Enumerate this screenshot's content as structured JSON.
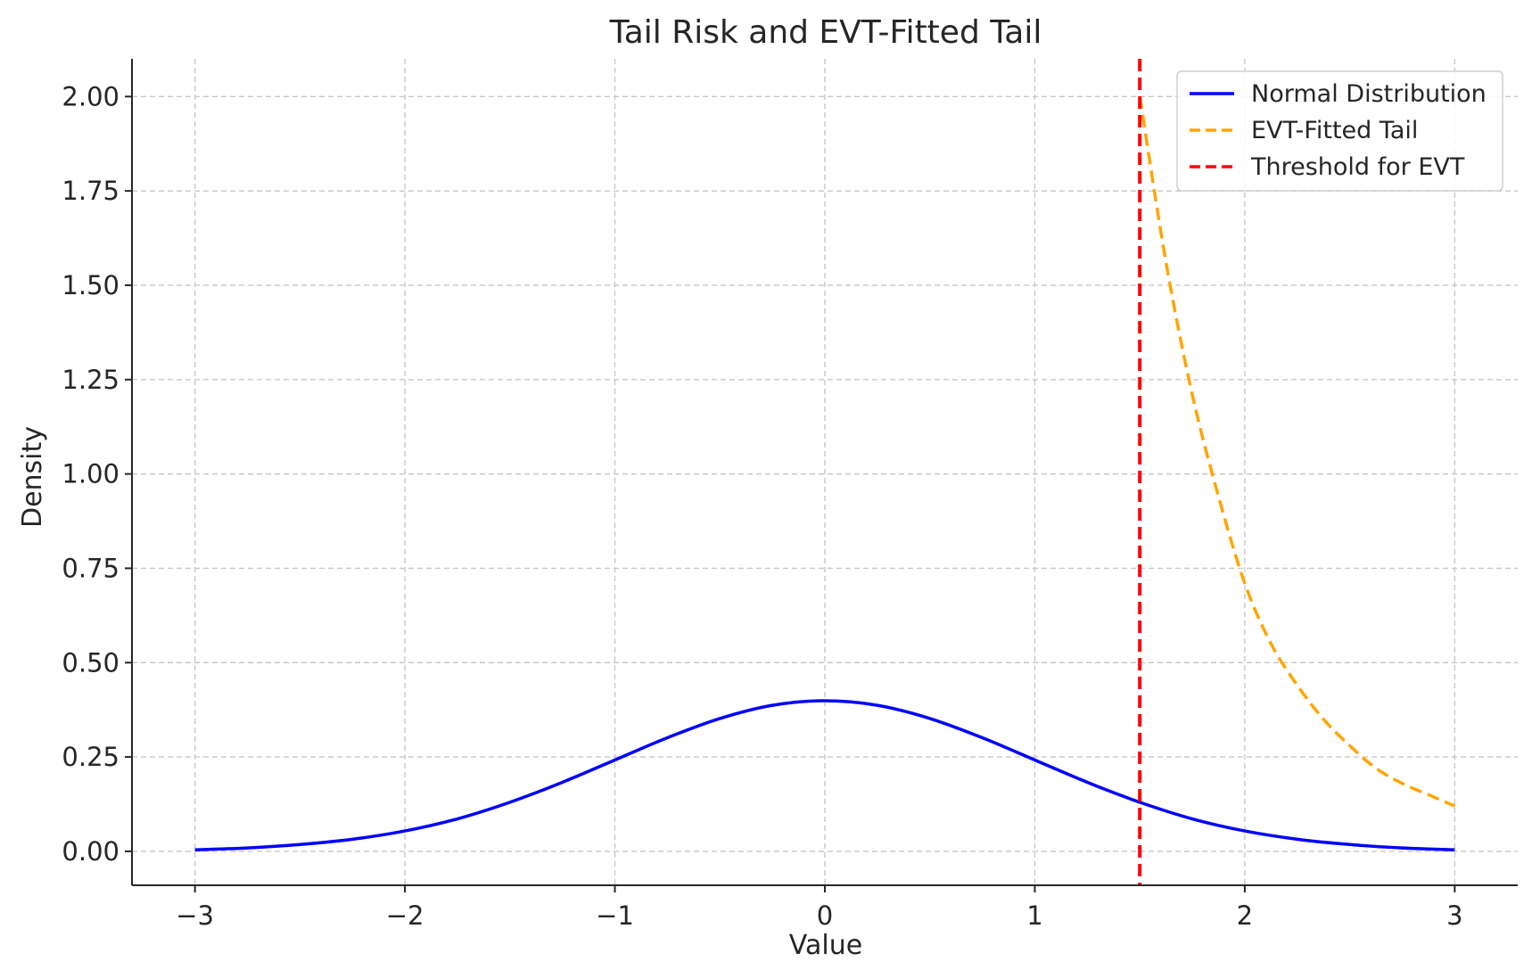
{
  "chart_data": {
    "type": "line",
    "title": "Tail Risk and EVT-Fitted Tail",
    "xlabel": "Value",
    "ylabel": "Density",
    "xlim": [
      -3.3,
      3.3
    ],
    "ylim": [
      -0.09,
      2.1
    ],
    "x_ticks": [
      -3,
      -2,
      -1,
      0,
      1,
      2,
      3
    ],
    "x_tick_labels": [
      "−3",
      "−2",
      "−1",
      "0",
      "1",
      "2",
      "3"
    ],
    "y_ticks": [
      0.0,
      0.25,
      0.5,
      0.75,
      1.0,
      1.25,
      1.5,
      1.75,
      2.0
    ],
    "y_tick_labels": [
      "0.00",
      "0.25",
      "0.50",
      "0.75",
      "1.00",
      "1.25",
      "1.50",
      "1.75",
      "2.00"
    ],
    "grid": true,
    "legend_position": "top-right",
    "series": [
      {
        "name": "Normal Distribution",
        "color": "#0000ff",
        "style": "solid",
        "x": [
          -3.0,
          -2.75,
          -2.5,
          -2.25,
          -2.0,
          -1.75,
          -1.5,
          -1.25,
          -1.0,
          -0.75,
          -0.5,
          -0.25,
          0.0,
          0.25,
          0.5,
          0.75,
          1.0,
          1.25,
          1.5,
          1.75,
          2.0,
          2.25,
          2.5,
          2.75,
          3.0
        ],
        "y": [
          0.004,
          0.009,
          0.018,
          0.032,
          0.054,
          0.086,
          0.13,
          0.183,
          0.242,
          0.301,
          0.352,
          0.387,
          0.399,
          0.387,
          0.352,
          0.301,
          0.242,
          0.183,
          0.13,
          0.086,
          0.054,
          0.032,
          0.018,
          0.009,
          0.004
        ]
      },
      {
        "name": "EVT-Fitted Tail",
        "color": "#ffa500",
        "style": "dashed",
        "x": [
          1.5,
          1.625,
          1.75,
          1.875,
          2.0,
          2.125,
          2.25,
          2.375,
          2.5,
          2.625,
          2.75,
          2.875,
          3.0
        ],
        "y": [
          2.0,
          1.56,
          1.21,
          0.94,
          0.71,
          0.55,
          0.44,
          0.35,
          0.28,
          0.22,
          0.18,
          0.15,
          0.12
        ]
      },
      {
        "name": "Threshold for EVT",
        "color": "#ff0000",
        "style": "dashed",
        "vline_x": 1.5
      }
    ]
  }
}
